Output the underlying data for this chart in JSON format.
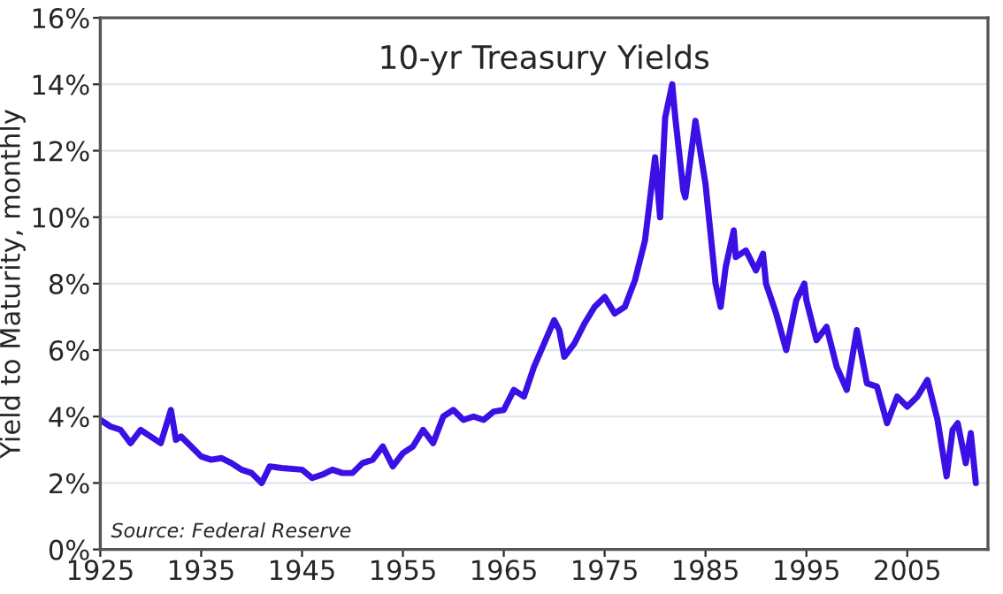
{
  "chart_data": {
    "type": "line",
    "title": "10-yr Treasury Yields",
    "ylabel": "Yield to Maturity, monthly",
    "annotations": [
      "Source: Federal Reserve"
    ],
    "x": [
      1925,
      1926,
      1927,
      1928,
      1929,
      1930,
      1931,
      1932,
      1932.5,
      1933,
      1934,
      1935,
      1936,
      1937,
      1938,
      1939,
      1940,
      1941,
      1941.8,
      1943,
      1945,
      1946,
      1947,
      1948,
      1949,
      1950,
      1951,
      1952,
      1953,
      1954,
      1955,
      1956,
      1957,
      1958,
      1959,
      1960,
      1961,
      1962,
      1963,
      1964,
      1965,
      1966,
      1967,
      1968,
      1969,
      1970,
      1970.5,
      1971,
      1972,
      1973,
      1974,
      1975,
      1976,
      1977,
      1978,
      1979,
      1980,
      1980.5,
      1981,
      1981.7,
      1982,
      1982.8,
      1983,
      1984,
      1985,
      1986,
      1986.5,
      1987,
      1987.8,
      1988,
      1989,
      1990,
      1990.7,
      1991,
      1992,
      1993,
      1994,
      1994.8,
      1995,
      1996,
      1997,
      1998,
      1999,
      2000,
      2001,
      2002,
      2003,
      2004,
      2005,
      2006,
      2007,
      2008,
      2008.9,
      2009.5,
      2010,
      2010.8,
      2011.3,
      2011.8
    ],
    "series": [
      {
        "color": "#3a10e5",
        "values": [
          3.9,
          3.7,
          3.6,
          3.2,
          3.6,
          3.4,
          3.2,
          4.2,
          3.3,
          3.4,
          3.1,
          2.8,
          2.7,
          2.75,
          2.6,
          2.4,
          2.3,
          2.0,
          2.5,
          2.45,
          2.4,
          2.15,
          2.25,
          2.4,
          2.3,
          2.3,
          2.6,
          2.7,
          3.1,
          2.5,
          2.9,
          3.1,
          3.6,
          3.2,
          4.0,
          4.2,
          3.9,
          4.0,
          3.9,
          4.15,
          4.2,
          4.8,
          4.6,
          5.5,
          6.2,
          6.9,
          6.6,
          5.8,
          6.2,
          6.8,
          7.3,
          7.6,
          7.1,
          7.3,
          8.1,
          9.3,
          11.8,
          10.0,
          13.0,
          14.0,
          13.0,
          10.8,
          10.6,
          12.9,
          11.0,
          8.0,
          7.3,
          8.5,
          9.6,
          8.8,
          9.0,
          8.4,
          8.9,
          8.0,
          7.1,
          6.0,
          7.5,
          8.0,
          7.5,
          6.3,
          6.7,
          5.5,
          4.8,
          6.6,
          5.0,
          4.9,
          3.8,
          4.6,
          4.3,
          4.6,
          5.1,
          3.9,
          2.2,
          3.6,
          3.8,
          2.6,
          3.5,
          2.0
        ]
      }
    ],
    "xlim": [
      1925,
      2013
    ],
    "xticks": [
      1925,
      1935,
      1945,
      1955,
      1965,
      1975,
      1985,
      1995,
      2005
    ],
    "ylim": [
      0,
      16
    ],
    "yticks": [
      {
        "value": 0,
        "label": "0%"
      },
      {
        "value": 2,
        "label": "2%"
      },
      {
        "value": 4,
        "label": "4%"
      },
      {
        "value": 6,
        "label": "6%"
      },
      {
        "value": 8,
        "label": "8%"
      },
      {
        "value": 10,
        "label": "10%"
      },
      {
        "value": 12,
        "label": "12%"
      },
      {
        "value": 14,
        "label": "14%"
      },
      {
        "value": 16,
        "label": "16%"
      }
    ],
    "grid": "y",
    "line_style": "solid",
    "marker": "none"
  }
}
